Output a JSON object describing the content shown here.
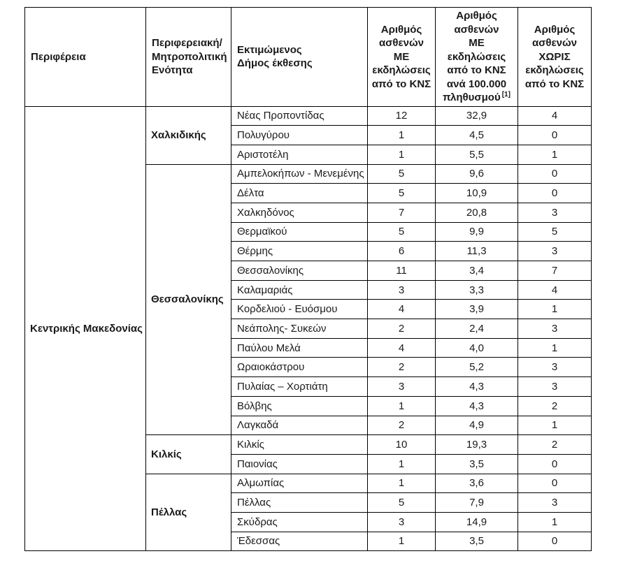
{
  "colors": {
    "background": "#ffffff",
    "border": "#000000",
    "text": "#1a1a1a"
  },
  "table": {
    "header": {
      "region": "Περιφέρεια",
      "unit": "Περιφερειακή/\nΜητροπολιτική\nΕνότητα",
      "municipality": "Εκτιμώμενος\nΔήμος έκθεσης",
      "with_cns": "Αριθμός\nασθενών\nΜΕ\nεκδηλώσεις\nαπό το ΚΝΣ",
      "per_100k": "Αριθμός\nασθενών\nΜΕ\nεκδηλώσεις\nαπό το ΚΝΣ\nανά 100.000\nπληθυσμού",
      "per_100k_sup": "[1]",
      "without_cns": "Αριθμός\nασθενών\nΧΩΡΙΣ\nεκδηλώσεις\nαπό το ΚΝΣ"
    },
    "region": "Κεντρικής Μακεδονίας",
    "groups": [
      {
        "unit": "Χαλκιδικής",
        "rows": [
          {
            "municipality": "Νέας Προποντίδας",
            "with_cns": "12",
            "per_100k": "32,9",
            "without_cns": "4"
          },
          {
            "municipality": "Πολυγύρου",
            "with_cns": "1",
            "per_100k": "4,5",
            "without_cns": "0"
          },
          {
            "municipality": "Αριστοτέλη",
            "with_cns": "1",
            "per_100k": "5,5",
            "without_cns": "1"
          }
        ]
      },
      {
        "unit": "Θεσσαλονίκης",
        "rows": [
          {
            "municipality": "Αμπελοκήπων - Μενεμένης",
            "with_cns": "5",
            "per_100k": "9,6",
            "without_cns": "0"
          },
          {
            "municipality": "Δέλτα",
            "with_cns": "5",
            "per_100k": "10,9",
            "without_cns": "0"
          },
          {
            "municipality": "Χαλκηδόνος",
            "with_cns": "7",
            "per_100k": "20,8",
            "without_cns": "3"
          },
          {
            "municipality": "Θερμαϊκού",
            "with_cns": "5",
            "per_100k": "9,9",
            "without_cns": "5"
          },
          {
            "municipality": "Θέρμης",
            "with_cns": "6",
            "per_100k": "11,3",
            "without_cns": "3"
          },
          {
            "municipality": "Θεσσαλονίκης",
            "with_cns": "11",
            "per_100k": "3,4",
            "without_cns": "7"
          },
          {
            "municipality": "Καλαμαριάς",
            "with_cns": "3",
            "per_100k": "3,3",
            "without_cns": "4"
          },
          {
            "municipality": "Κορδελιού - Ευόσμου",
            "with_cns": "4",
            "per_100k": "3,9",
            "without_cns": "1"
          },
          {
            "municipality": "Νεάπολης- Συκεών",
            "with_cns": "2",
            "per_100k": "2,4",
            "without_cns": "3"
          },
          {
            "municipality": "Παύλου Μελά",
            "with_cns": "4",
            "per_100k": "4,0",
            "without_cns": "1"
          },
          {
            "municipality": "Ωραιοκάστρου",
            "with_cns": "2",
            "per_100k": "5,2",
            "without_cns": "3"
          },
          {
            "municipality": "Πυλαίας – Χορτιάτη",
            "with_cns": "3",
            "per_100k": "4,3",
            "without_cns": "3"
          },
          {
            "municipality": "Βόλβης",
            "with_cns": "1",
            "per_100k": "4,3",
            "without_cns": "2"
          },
          {
            "municipality": "Λαγκαδά",
            "with_cns": "2",
            "per_100k": "4,9",
            "without_cns": "1"
          }
        ]
      },
      {
        "unit": "Κιλκίς",
        "rows": [
          {
            "municipality": "Κιλκίς",
            "with_cns": "10",
            "per_100k": "19,3",
            "without_cns": "2"
          },
          {
            "municipality": "Παιονίας",
            "with_cns": "1",
            "per_100k": "3,5",
            "without_cns": "0"
          }
        ]
      },
      {
        "unit": "Πέλλας",
        "rows": [
          {
            "municipality": "Αλμωπίας",
            "with_cns": "1",
            "per_100k": "3,6",
            "without_cns": "0"
          },
          {
            "municipality": "Πέλλας",
            "with_cns": "5",
            "per_100k": "7,9",
            "without_cns": "3"
          },
          {
            "municipality": "Σκύδρας",
            "with_cns": "3",
            "per_100k": "14,9",
            "without_cns": "1"
          },
          {
            "municipality": "Έδεσσας",
            "with_cns": "1",
            "per_100k": "3,5",
            "without_cns": "0"
          }
        ]
      }
    ]
  }
}
